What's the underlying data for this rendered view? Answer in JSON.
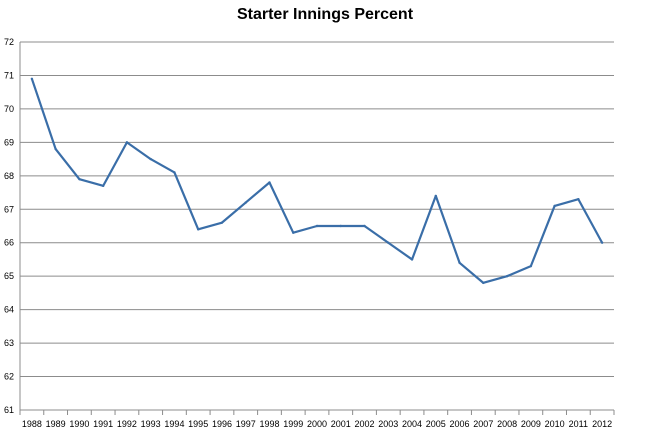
{
  "chart_data": {
    "type": "line",
    "title": "Starter Innings Percent",
    "xlabel": "",
    "ylabel": "",
    "ylim": [
      61,
      72
    ],
    "yticks": [
      61,
      62,
      63,
      64,
      65,
      66,
      67,
      68,
      69,
      70,
      71,
      72
    ],
    "grid": "horizontal",
    "legend": "none",
    "line_color": "#3a6ea8",
    "grid_color": "#8c8c8c",
    "categories": [
      "1988",
      "1989",
      "1990",
      "1991",
      "1992",
      "1993",
      "1994",
      "1995",
      "1996",
      "1997",
      "1998",
      "1999",
      "2000",
      "2001",
      "2002",
      "2003",
      "2004",
      "2005",
      "2006",
      "2007",
      "2008",
      "2009",
      "2010",
      "2011",
      "2012"
    ],
    "values": [
      70.9,
      68.8,
      67.9,
      67.7,
      69.0,
      68.5,
      68.1,
      66.4,
      66.6,
      67.2,
      67.8,
      66.3,
      66.5,
      66.5,
      66.5,
      66.0,
      65.5,
      67.4,
      65.4,
      64.8,
      65.0,
      65.3,
      67.1,
      67.3,
      66.0
    ]
  }
}
